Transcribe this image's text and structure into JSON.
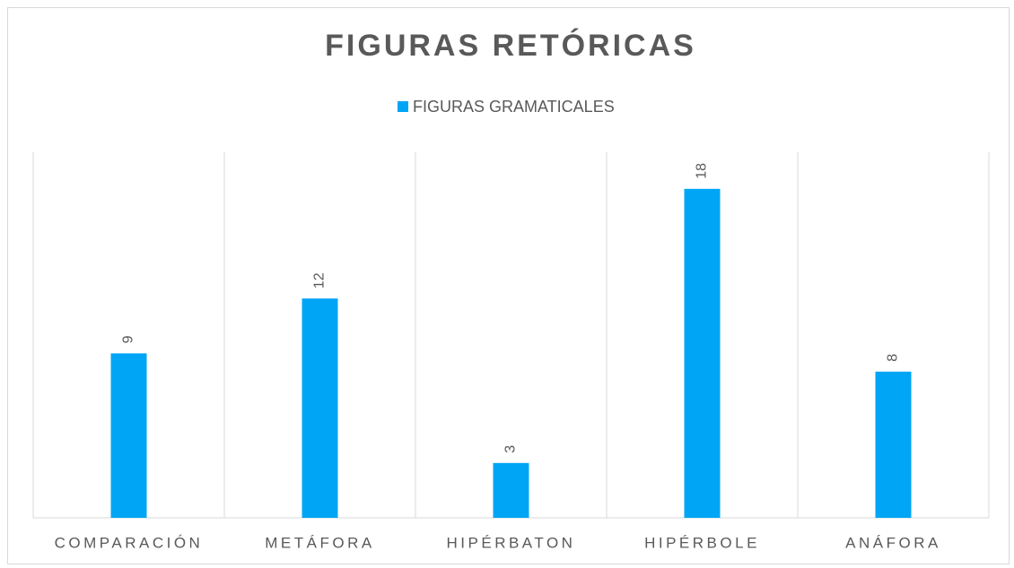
{
  "chart_data": {
    "type": "bar",
    "title": "FIGURAS RETÓRICAS",
    "categories": [
      "COMPARACIÓN",
      "METÁFORA",
      "HIPÉRBATON",
      "HIPÉRBOLE",
      "ANÁFORA"
    ],
    "series": [
      {
        "name": "FIGURAS GRAMATICALES",
        "color": "#00a5f5",
        "values": [
          9,
          12,
          3,
          18,
          8
        ]
      }
    ],
    "ylim": [
      0,
      20
    ],
    "legend": "top"
  }
}
